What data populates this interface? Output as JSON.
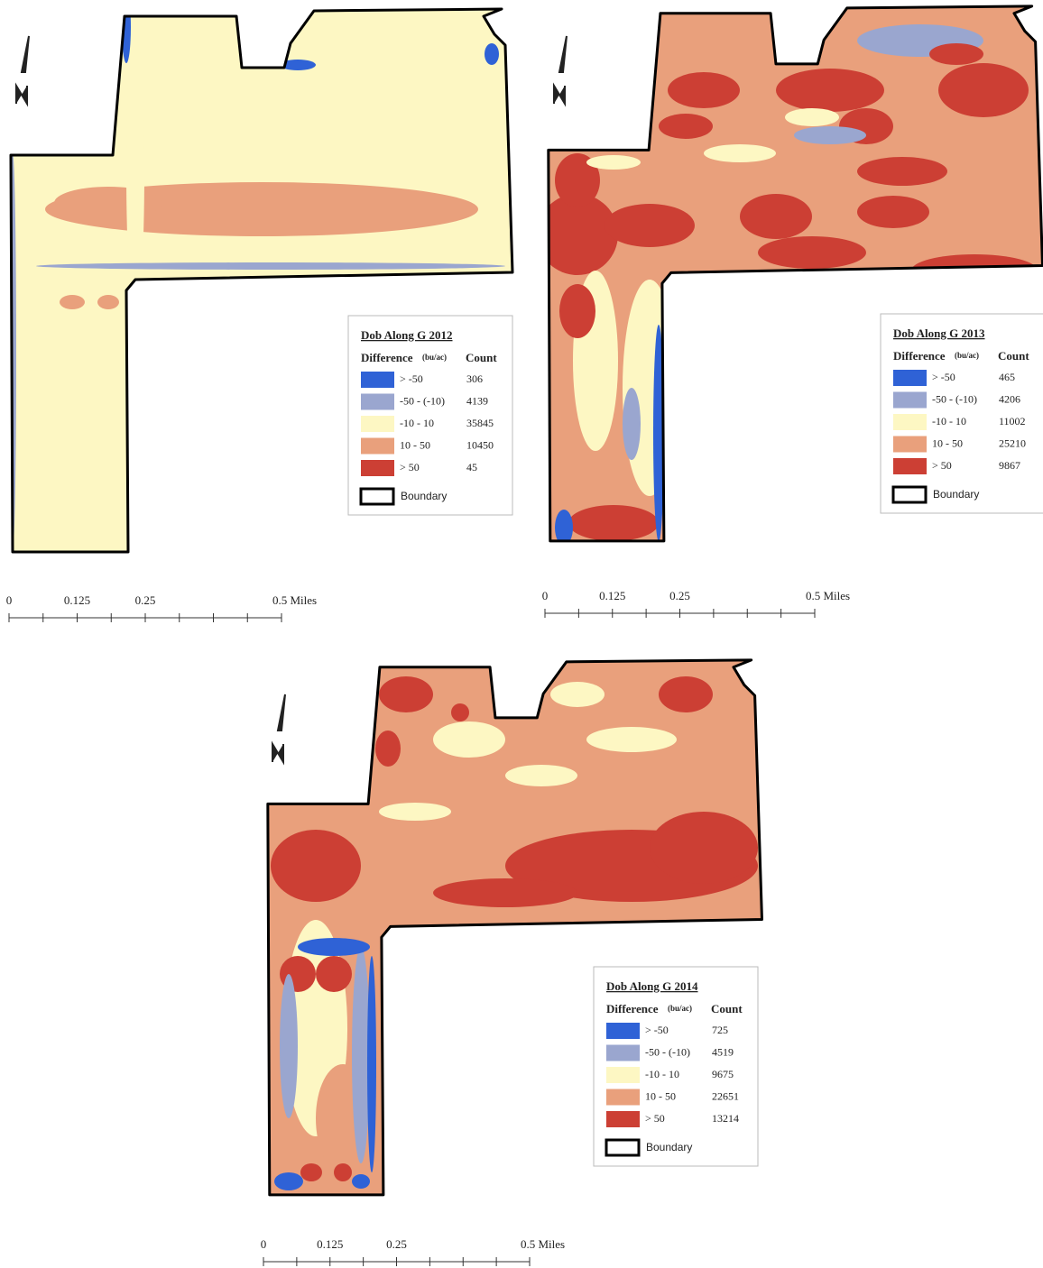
{
  "maps": [
    {
      "title": "Dob Along G 2012",
      "legend": {
        "header": "Difference",
        "unit": "(bu/ac)",
        "count_header": "Count",
        "classes": [
          {
            "label": "> -50",
            "color": "#2f62d6",
            "count": "306"
          },
          {
            "label": "-50 - (-10)",
            "color": "#9aa6cf",
            "count": "4139"
          },
          {
            "label": "-10 - 10",
            "color": "#fdf7c3",
            "count": "35845"
          },
          {
            "label": "10 - 50",
            "color": "#e9a07c",
            "count": "10450"
          },
          {
            "label": "> 50",
            "color": "#cc3f34",
            "count": "45"
          }
        ],
        "boundary": "Boundary"
      },
      "scale": [
        "0",
        "0.125",
        "0.25",
        "0.5 Miles"
      ]
    },
    {
      "title": "Dob Along G 2013",
      "legend": {
        "header": "Difference",
        "unit": "(bu/ac)",
        "count_header": "Count",
        "classes": [
          {
            "label": "> -50",
            "color": "#2f62d6",
            "count": "465"
          },
          {
            "label": "-50 - (-10)",
            "color": "#9aa6cf",
            "count": "4206"
          },
          {
            "label": "-10 - 10",
            "color": "#fdf7c3",
            "count": "11002"
          },
          {
            "label": "10 - 50",
            "color": "#e9a07c",
            "count": "25210"
          },
          {
            "label": "> 50",
            "color": "#cc3f34",
            "count": "9867"
          }
        ],
        "boundary": "Boundary"
      },
      "scale": [
        "0",
        "0.125",
        "0.25",
        "0.5 Miles"
      ]
    },
    {
      "title": "Dob Along G 2014",
      "legend": {
        "header": "Difference",
        "unit": "(bu/ac)",
        "count_header": "Count",
        "classes": [
          {
            "label": "> -50",
            "color": "#2f62d6",
            "count": "725"
          },
          {
            "label": "-50 - (-10)",
            "color": "#9aa6cf",
            "count": "4519"
          },
          {
            "label": "-10 - 10",
            "color": "#fdf7c3",
            "count": "9675"
          },
          {
            "label": "10 - 50",
            "color": "#e9a07c",
            "count": "22651"
          },
          {
            "label": "> 50",
            "color": "#cc3f34",
            "count": "13214"
          }
        ],
        "boundary": "Boundary"
      },
      "scale": [
        "0",
        "0.125",
        "0.25",
        "0.5 Miles"
      ]
    }
  ]
}
